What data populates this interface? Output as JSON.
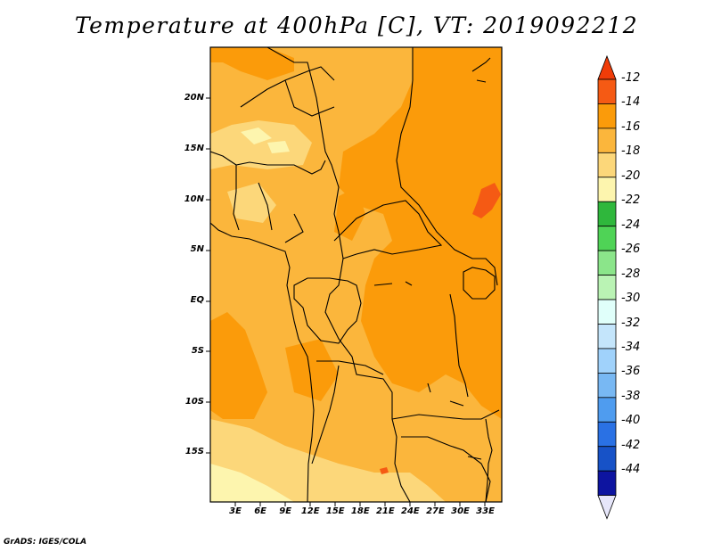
{
  "title": "Temperature at 400hPa [C], VT: 2019092212",
  "credit": "GrADS: IGES/COLA",
  "lat_ticks": [
    {
      "label": "20N",
      "lat": 20
    },
    {
      "label": "15N",
      "lat": 15
    },
    {
      "label": "10N",
      "lat": 10
    },
    {
      "label": "5N",
      "lat": 5
    },
    {
      "label": "EQ",
      "lat": 0
    },
    {
      "label": "5S",
      "lat": -5
    },
    {
      "label": "10S",
      "lat": -10
    },
    {
      "label": "15S",
      "lat": -15
    }
  ],
  "lon_ticks": [
    {
      "label": "3E",
      "lon": 3
    },
    {
      "label": "6E",
      "lon": 6
    },
    {
      "label": "9E",
      "lon": 9
    },
    {
      "label": "12E",
      "lon": 12
    },
    {
      "label": "15E",
      "lon": 15
    },
    {
      "label": "18E",
      "lon": 18
    },
    {
      "label": "21E",
      "lon": 21
    },
    {
      "label": "24E",
      "lon": 24
    },
    {
      "label": "27E",
      "lon": 27
    },
    {
      "label": "30E",
      "lon": 30
    },
    {
      "label": "33E",
      "lon": 33
    }
  ],
  "colorbar": {
    "labels": [
      "-12",
      "-14",
      "-16",
      "-18",
      "-20",
      "-22",
      "-24",
      "-26",
      "-28",
      "-30",
      "-32",
      "-34",
      "-36",
      "-38",
      "-40",
      "-42",
      "-44"
    ],
    "colors": [
      "#f55a14",
      "#fb9b0a",
      "#fbb63c",
      "#fcd77a",
      "#fdf5ae",
      "#2fb73c",
      "#4fd356",
      "#8be58a",
      "#baf3b4",
      "#e0fffa",
      "#c4e5fb",
      "#a0d2fb",
      "#78b8f3",
      "#4f9cef",
      "#2a71e4",
      "#1752c7",
      "#0d14a0"
    ],
    "top_arrow_color": "#f03c08",
    "bottom_arrow_color": "#e6e6fa"
  },
  "map": {
    "field_colors": {
      "cold": "#fdf5ae",
      "cool": "#fcd77a",
      "mid": "#fbb63c",
      "warm": "#fb9b0a",
      "hot": "#f55a14"
    }
  }
}
